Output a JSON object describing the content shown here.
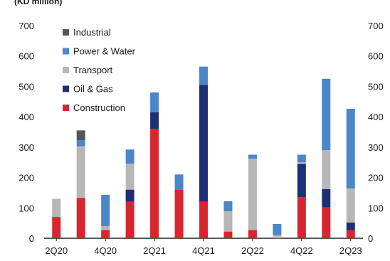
{
  "chart_data": {
    "type": "bar",
    "stacked": true,
    "ylabel": "(KD million)",
    "ylim": [
      0,
      700
    ],
    "yticks": [
      0,
      100,
      200,
      300,
      400,
      500,
      600,
      700
    ],
    "right_axis": true,
    "right_ticks": [
      "0",
      "100",
      "200",
      "300",
      "400",
      "500",
      "600",
      "700"
    ],
    "categories": [
      "2Q20",
      "3Q20",
      "4Q20",
      "1Q21",
      "2Q21",
      "3Q21",
      "4Q21",
      "1Q22",
      "2Q22",
      "3Q22",
      "4Q22",
      "1Q23",
      "2Q23"
    ],
    "x_tick_labels": [
      "2Q20",
      "4Q20",
      "2Q21",
      "4Q21",
      "2Q22",
      "4Q22",
      "2Q23"
    ],
    "x_tick_indices": [
      0,
      2,
      4,
      6,
      8,
      10,
      12
    ],
    "legend_position": "top-left",
    "series": [
      {
        "name": "Construction",
        "color": "#d7262f",
        "values": [
          70,
          133,
          27,
          120,
          360,
          160,
          120,
          22,
          27,
          0,
          135,
          102,
          27
        ]
      },
      {
        "name": "Oil & Gas",
        "color": "#1f2f73",
        "values": [
          0,
          0,
          0,
          40,
          55,
          0,
          385,
          0,
          0,
          0,
          110,
          60,
          25
        ]
      },
      {
        "name": "Transport",
        "color": "#b7b7b7",
        "values": [
          60,
          170,
          13,
          85,
          0,
          0,
          0,
          67,
          235,
          10,
          5,
          128,
          112
        ]
      },
      {
        "name": "Power & Water",
        "color": "#4a86c8",
        "values": [
          0,
          20,
          103,
          47,
          65,
          50,
          60,
          33,
          13,
          37,
          25,
          235,
          262
        ]
      },
      {
        "name": "Industrial",
        "color": "#555555",
        "values": [
          0,
          32,
          0,
          0,
          0,
          0,
          0,
          0,
          0,
          0,
          0,
          0,
          0
        ]
      }
    ],
    "legend_order": [
      "Industrial",
      "Power & Water",
      "Transport",
      "Oil & Gas",
      "Construction"
    ]
  }
}
